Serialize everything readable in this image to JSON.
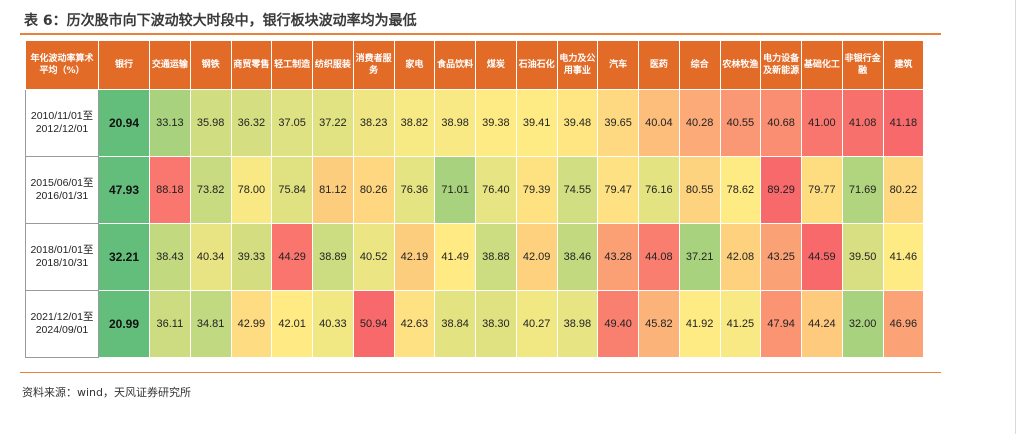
{
  "title": "表 6：历次股市向下波动较大时段中，银行板块波动率均为最低",
  "source": "资料来源：wind，天风证券研究所",
  "header": {
    "row_label": "年化波动率算术平均（%）",
    "sectors": [
      "银行",
      "交通运输",
      "钢铁",
      "商贸零售",
      "轻工制造",
      "纺织服装",
      "消费者服务",
      "家电",
      "食品饮料",
      "煤炭",
      "石油石化",
      "电力及公用事业",
      "汽车",
      "医药",
      "综合",
      "农林牧渔",
      "电力设备及新能源",
      "基础化工",
      "非银行金融",
      "建筑"
    ]
  },
  "rows": [
    {
      "period": "2010/11/01至2012/12/01",
      "values": [
        20.94,
        33.13,
        35.98,
        36.32,
        37.05,
        37.22,
        38.23,
        38.82,
        38.98,
        39.38,
        39.41,
        39.48,
        39.65,
        40.04,
        40.28,
        40.55,
        40.68,
        41.0,
        41.08,
        41.18
      ]
    },
    {
      "period": "2015/06/01至2016/01/31",
      "values": [
        47.93,
        88.18,
        73.82,
        78.0,
        75.84,
        81.12,
        80.26,
        76.36,
        71.01,
        76.4,
        79.39,
        74.55,
        79.47,
        76.16,
        80.55,
        78.62,
        89.29,
        79.77,
        71.69,
        80.22
      ]
    },
    {
      "period": "2018/01/01至2018/10/31",
      "values": [
        32.21,
        38.43,
        40.34,
        39.33,
        44.29,
        38.89,
        40.52,
        42.19,
        41.49,
        38.88,
        42.09,
        38.46,
        43.28,
        44.08,
        37.21,
        42.08,
        43.25,
        44.59,
        39.5,
        41.46
      ]
    },
    {
      "period": "2021/12/01至2024/09/01",
      "values": [
        20.99,
        36.11,
        34.81,
        42.99,
        42.01,
        40.33,
        50.94,
        42.63,
        38.84,
        38.3,
        40.27,
        38.98,
        49.4,
        45.82,
        41.92,
        41.25,
        47.94,
        44.24,
        32.0,
        46.96
      ]
    }
  ],
  "colors": {
    "header_bg": "#e26b28",
    "bank_cell": "#63be7b",
    "scale_low": "#a9d27f",
    "scale_mid": "#ffeb84",
    "scale_high": "#f8696b"
  },
  "chart_data": {
    "type": "table",
    "title": "表 6：历次股市向下波动较大时段中，银行板块波动率均为最低",
    "row_header": "年化波动率算术平均（%）",
    "columns": [
      "银行",
      "交通运输",
      "钢铁",
      "商贸零售",
      "轻工制造",
      "纺织服装",
      "消费者服务",
      "家电",
      "食品饮料",
      "煤炭",
      "石油石化",
      "电力及公用事业",
      "汽车",
      "医药",
      "综合",
      "农林牧渔",
      "电力设备及新能源",
      "基础化工",
      "非银行金融",
      "建筑"
    ],
    "rows": [
      "2010/11/01至2012/12/01",
      "2015/06/01至2016/01/31",
      "2018/01/01至2018/10/31",
      "2021/12/01至2024/09/01"
    ]
  }
}
